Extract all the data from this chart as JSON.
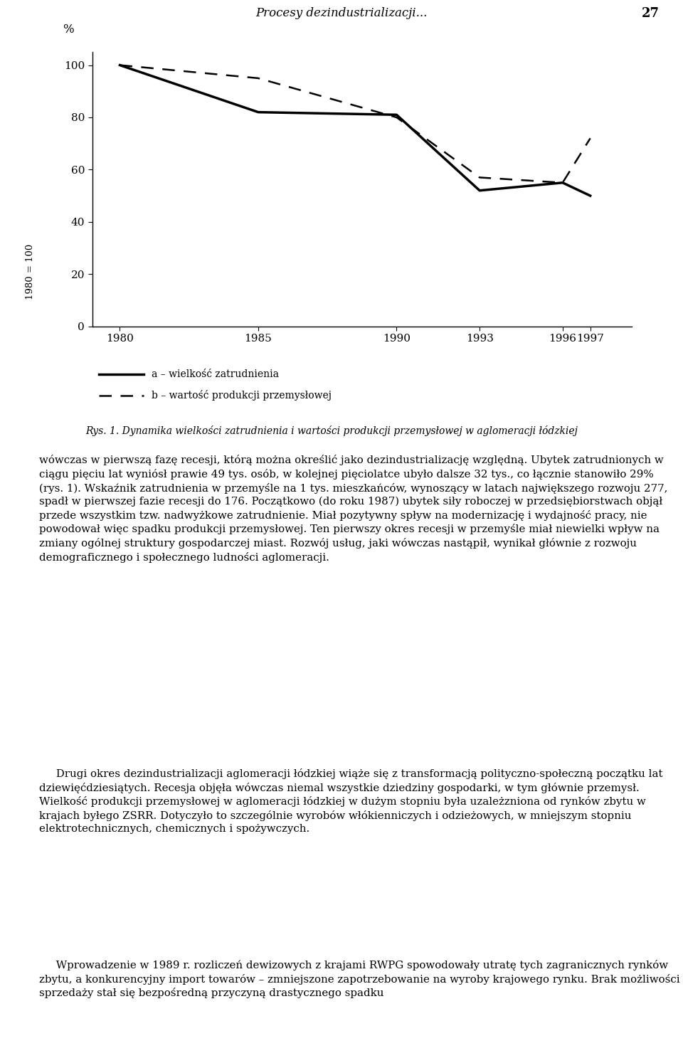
{
  "header": "Procesy dezindustrializacji...",
  "page_number": "27",
  "caption": "Rys. 1. Dynamika wielkości zatrudnienia i wartości produkcji przemysłowej w aglomeracji łódzkiej",
  "ylabel_rotated": "1980 = 100",
  "ylabel_unit": "%",
  "x_ticks": [
    1980,
    1985,
    1990,
    1993,
    1996,
    1997
  ],
  "y_ticks": [
    0,
    20,
    40,
    60,
    80,
    100
  ],
  "ylim": [
    0,
    105
  ],
  "xlim": [
    1979.0,
    1998.5
  ],
  "series_a_x": [
    1980,
    1985,
    1990,
    1993,
    1996,
    1997
  ],
  "series_a_y": [
    100,
    82,
    81,
    52,
    55,
    50
  ],
  "series_b_x": [
    1980,
    1985,
    1990,
    1993,
    1996,
    1997
  ],
  "series_b_y": [
    100,
    95,
    80,
    57,
    55,
    72
  ],
  "legend_a": "a – wielkość zatrudnienia",
  "legend_b": "b – wartość produkcji przemysłowej",
  "line_color": "#000000",
  "bg_color": "#ffffff",
  "linewidth_solid": 2.5,
  "linewidth_dashed": 1.8,
  "para1": "wówczas w pierwszą fazę recesji, którą można określić jako dezindustrializację względną. Ubytek zatrudnionych w ciągu pięciu lat wyniósł prawie 49 tys. osób, w kolejnej pięciolatce ubyło dalsze 32 tys., co łącznie stanowiło 29% (rys. 1). Wskaźnik zatrudnienia w przemyśle na 1 tys. mieszkańców, wynoszący w latach największego rozwoju 277, spadł w pierwszej fazie recesji do 176. Początkowo (do roku 1987) ubytek siły roboczej w przedsiębiorstwach objął przede wszystkim tzw. nadwyżkowe zatrudnienie. Miał pozytywny spływ na modernizację i wydajność pracy, nie powodował więc spadku produkcji przemysłowej. Ten pierwszy okres recesji w przemyśle miał niewielki wpływ na zmiany ogólnej struktury gospodarczej miast. Rozwój usług, jaki wówczas nastąpił, wynikał głównie z rozwoju demograficznego i społecznego ludności aglomeracji.",
  "para2": "     Drugi okres dezindustrializacji aglomeracji łódzkiej wiąże się z transformacją polityczno-społeczną początku lat dziewięćdziesiątych. Recesja objęła wówczas niemal wszystkie dziedziny gospodarki, w tym głównie przemysł. Wielkość produkcji przemysłowej w aglomeracji łódzkiej w dużym stopniu była uzależzniona od rynków zbytu w krajach byłego ZSRR. Dotyczyło to szczególnie wyrobów włókienniczych i odzieżowych, w mniejszym stopniu elektrotechnicznych, chemicznych i spożywczych.",
  "para3": "     Wprowadzenie w 1989 r. rozliczeń dewizowych z krajami RWPG spowodowały utratę tych zagranicznych rynków zbytu, a konkurencyjny import towarów – zmniejszone zapotrzebowanie na wyroby krajowego rynku. Brak możliwości sprzedaży stał się bezpośredną przyczyną drastycznego spadku"
}
